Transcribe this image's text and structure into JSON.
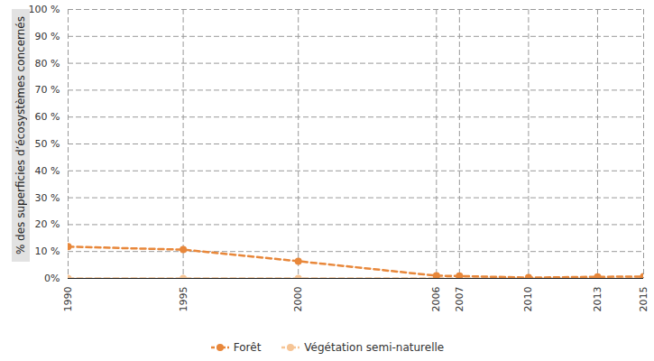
{
  "chart_data": {
    "type": "line",
    "y_label": "% des superficies d’écosystèmes concernés",
    "x": [
      1990,
      1995,
      2000,
      2006,
      2007,
      2010,
      2013,
      2015
    ],
    "series": [
      {
        "name": "Forêt",
        "color": "#e8873a",
        "marker": "circle",
        "line_style": "dashed",
        "values": [
          11.8,
          10.7,
          6.4,
          1.0,
          0.9,
          0.3,
          0.6,
          0.7
        ]
      },
      {
        "name": "Végétation semi-naturelle",
        "color": "#f6c596",
        "marker": "circle",
        "line_style": "dashed",
        "values": [
          0,
          0,
          0,
          0,
          0,
          0,
          0,
          0
        ]
      }
    ],
    "xlim": [
      1990,
      2015
    ],
    "xticks": [
      1990,
      1995,
      2000,
      2006,
      2007,
      2010,
      2013,
      2015
    ],
    "ylim": [
      0,
      100
    ],
    "yticks": [
      {
        "value": 0,
        "label": "0%"
      },
      {
        "value": 10,
        "label": "10 %"
      },
      {
        "value": 20,
        "label": "20 %"
      },
      {
        "value": 30,
        "label": "30 %"
      },
      {
        "value": 40,
        "label": "40 %"
      },
      {
        "value": 50,
        "label": "50 %"
      },
      {
        "value": 60,
        "label": "60 %"
      },
      {
        "value": 70,
        "label": "70 %"
      },
      {
        "value": 80,
        "label": "80 %"
      },
      {
        "value": 90,
        "label": "90 %"
      },
      {
        "value": 100,
        "label": "100 %"
      }
    ],
    "grid": true,
    "legend": "bottom"
  }
}
